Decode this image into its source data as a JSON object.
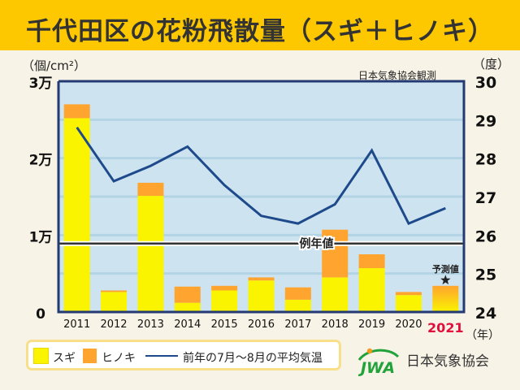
{
  "title": "千代田区の花粉飛散量（スギ＋ヒノキ）",
  "source_note": "日本気象協会観測",
  "organization": "日本気象協会",
  "logo_text": "JWA",
  "colors": {
    "sugi": "#faf400",
    "hinoki": "#ffa42e",
    "temp_line": "#1e4a8c",
    "plot_bg": "#cde3ef",
    "frame": "#233a72",
    "highlight_year": "#e0103c"
  },
  "legend": [
    {
      "label": "スギ",
      "type": "swatch",
      "color": "#faf400"
    },
    {
      "label": "ヒノキ",
      "type": "swatch",
      "color": "#ffa42e"
    },
    {
      "label": "前年の7月～8月の平均気温",
      "type": "line",
      "color": "#1e4a8c"
    }
  ],
  "chart_data": {
    "type": "bar",
    "stacked": true,
    "title": "千代田区の花粉飛散量（スギ＋ヒノキ）",
    "categories": [
      "2011",
      "2012",
      "2013",
      "2014",
      "2015",
      "2016",
      "2017",
      "2018",
      "2019",
      "2020",
      "2021"
    ],
    "highlight_category": "2021",
    "xlabel": "（年）",
    "ylabel_left": "（個/cm²）",
    "ylabel_right": "（度）",
    "ylim_left": [
      0,
      30000
    ],
    "ylim_right": [
      24,
      30
    ],
    "left_ticks": [
      {
        "value": 0,
        "label": "0"
      },
      {
        "value": 10000,
        "label": "1万"
      },
      {
        "value": 20000,
        "label": "2万"
      },
      {
        "value": 30000,
        "label": "3万"
      }
    ],
    "right_ticks": [
      {
        "value": 24,
        "label": "24"
      },
      {
        "value": 25,
        "label": "25"
      },
      {
        "value": 26,
        "label": "26"
      },
      {
        "value": 27,
        "label": "27"
      },
      {
        "value": 28,
        "label": "28"
      },
      {
        "value": 29,
        "label": "29"
      },
      {
        "value": 30,
        "label": "30"
      }
    ],
    "gridlines_left": [
      5000,
      10000,
      15000,
      20000,
      25000
    ],
    "series": [
      {
        "name": "スギ",
        "values": [
          25200,
          2600,
          15100,
          1200,
          2800,
          4100,
          1600,
          4500,
          5700,
          2200,
          null
        ]
      },
      {
        "name": "ヒノキ",
        "values": [
          1800,
          200,
          1700,
          2100,
          600,
          400,
          1600,
          6200,
          1800,
          400,
          null
        ]
      }
    ],
    "forecast": {
      "category": "2021",
      "total": 3400,
      "label": "予測値"
    },
    "line_series": {
      "name": "前年の7月～8月の平均気温",
      "axis": "right",
      "values": [
        28.8,
        27.4,
        27.8,
        28.3,
        27.3,
        26.5,
        26.3,
        26.8,
        28.2,
        26.3,
        26.7
      ]
    },
    "reference_line": {
      "label": "例年値",
      "value": 8900
    },
    "grid": true,
    "legend_position": "bottom-left"
  }
}
